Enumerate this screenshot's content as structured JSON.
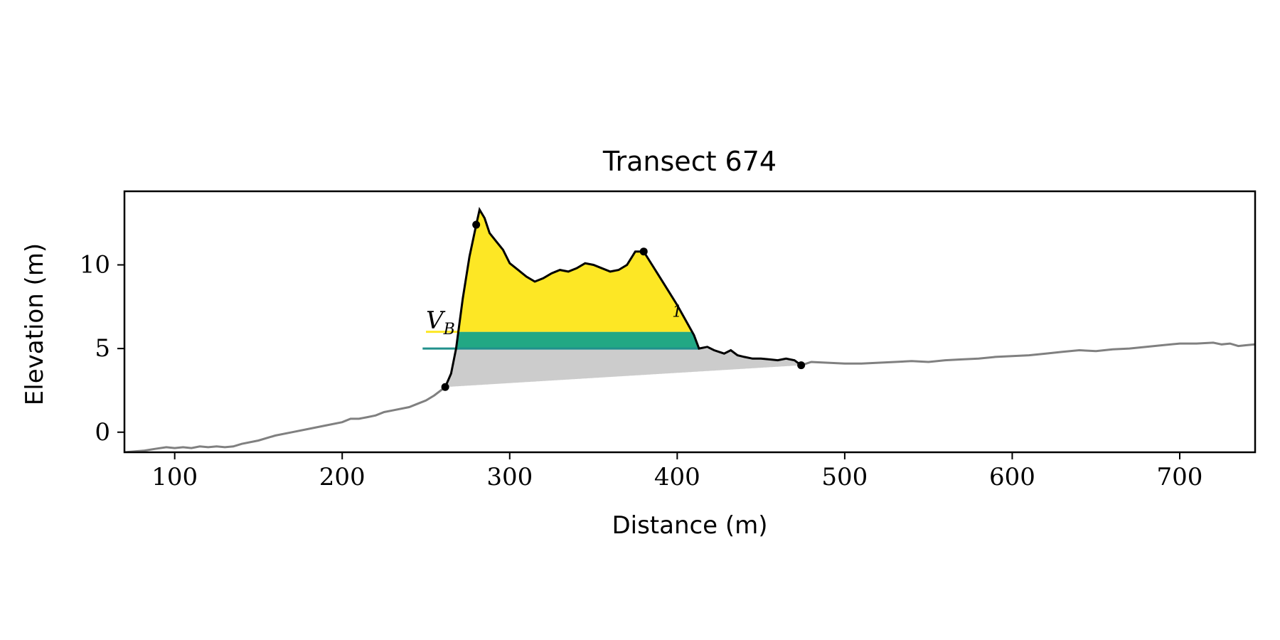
{
  "chart_data": {
    "type": "area",
    "title": "Transect 674",
    "xlabel": "Distance (m)",
    "ylabel": "Elevation (m)",
    "xlim": [
      70,
      745
    ],
    "ylim": [
      -1.2,
      14.4
    ],
    "xticks": [
      100,
      200,
      300,
      400,
      500,
      600,
      700
    ],
    "yticks": [
      0,
      5,
      10
    ],
    "grid": false,
    "legend": "none",
    "colors": {
      "full_profile": "#808080",
      "dune_profile": "#000000",
      "volume_above_water_level_1": "#fde725",
      "volume_between_water_levels": "#22a884",
      "water_level_upper_line": "#fde725",
      "water_level_lower_line": "#21918c",
      "volume_below_water_level_2": "#cccccc"
    },
    "water_levels": [
      {
        "elevation": 6.0,
        "x_start": 250
      },
      {
        "elevation": 5.0,
        "x_start": 248
      }
    ],
    "annotations": [
      {
        "text": "V",
        "subscript": "B",
        "x": 250,
        "y": 6.2
      },
      {
        "text": "",
        "subscript": "1",
        "x": 397,
        "y": 6.9
      }
    ],
    "key_points": [
      {
        "x": 261.5,
        "y": 2.7
      },
      {
        "x": 280,
        "y": 12.4
      },
      {
        "x": 380,
        "y": 10.8
      },
      {
        "x": 474,
        "y": 4.0
      }
    ],
    "full_profile": {
      "x": [
        70,
        82,
        88,
        95,
        100,
        105,
        110,
        115,
        120,
        125,
        130,
        135,
        140,
        150,
        160,
        170,
        180,
        190,
        200,
        205,
        210,
        215,
        220,
        225,
        230,
        240,
        245,
        250,
        255,
        261.5
      ],
      "y": [
        -1.2,
        -1.1,
        -1.0,
        -0.9,
        -0.95,
        -0.9,
        -0.95,
        -0.85,
        -0.9,
        -0.85,
        -0.9,
        -0.85,
        -0.7,
        -0.5,
        -0.2,
        0.0,
        0.2,
        0.4,
        0.6,
        0.8,
        0.8,
        0.9,
        1.0,
        1.2,
        1.3,
        1.5,
        1.7,
        1.9,
        2.2,
        2.7
      ]
    },
    "full_profile_right": {
      "x": [
        474,
        480,
        490,
        500,
        510,
        520,
        530,
        540,
        550,
        560,
        570,
        580,
        590,
        600,
        610,
        620,
        630,
        640,
        650,
        660,
        670,
        680,
        690,
        700,
        710,
        720,
        725,
        730,
        735,
        740,
        745
      ],
      "y": [
        4.0,
        4.2,
        4.15,
        4.1,
        4.1,
        4.15,
        4.2,
        4.25,
        4.2,
        4.3,
        4.35,
        4.4,
        4.5,
        4.55,
        4.6,
        4.7,
        4.8,
        4.9,
        4.85,
        4.95,
        5.0,
        5.1,
        5.2,
        5.3,
        5.3,
        5.35,
        5.25,
        5.3,
        5.15,
        5.2,
        5.25
      ]
    },
    "dune_profile": {
      "x": [
        261.5,
        265,
        268,
        272,
        276,
        280,
        282,
        285,
        288,
        292,
        296,
        300,
        305,
        310,
        315,
        320,
        325,
        330,
        335,
        340,
        345,
        350,
        355,
        360,
        365,
        370,
        375,
        380,
        385,
        390,
        395,
        400,
        405,
        410,
        413,
        418,
        422,
        428,
        432,
        436,
        440,
        445,
        450,
        455,
        460,
        465,
        470,
        474
      ],
      "y": [
        2.7,
        3.5,
        5.0,
        8.0,
        10.5,
        12.4,
        13.3,
        12.8,
        11.9,
        11.4,
        10.9,
        10.1,
        9.7,
        9.3,
        9.0,
        9.2,
        9.5,
        9.7,
        9.6,
        9.8,
        10.1,
        10.0,
        9.8,
        9.6,
        9.7,
        10.0,
        10.8,
        10.8,
        10.0,
        9.2,
        8.4,
        7.6,
        6.7,
        5.8,
        5.0,
        5.1,
        4.9,
        4.7,
        4.9,
        4.6,
        4.5,
        4.4,
        4.4,
        4.35,
        4.3,
        4.4,
        4.3,
        4.0
      ]
    }
  }
}
